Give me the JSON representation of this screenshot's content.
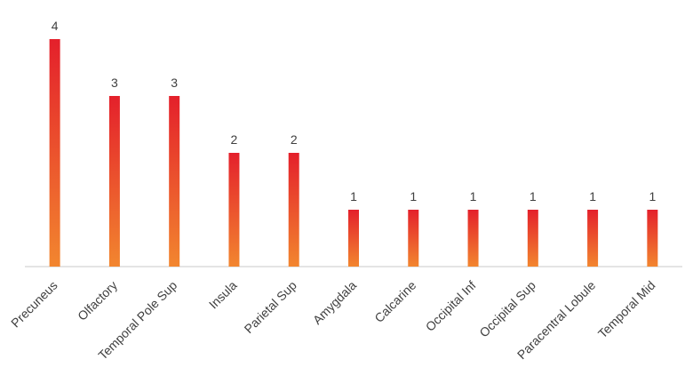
{
  "chart_data": {
    "type": "bar",
    "categories": [
      "Precuneus",
      "Olfactory",
      "Temporal Pole Sup",
      "Insula",
      "Parietal Sup",
      "Amygdala",
      "Calcarine",
      "Occipital Inf",
      "Occipital Sup",
      "Paracentral Lobule",
      "Temporal Mid"
    ],
    "values": [
      4,
      3,
      3,
      2,
      2,
      1,
      1,
      1,
      1,
      1,
      1
    ],
    "gradient": [
      "#e4202b",
      "#f2862f"
    ],
    "axis_color": "#c8c8c8",
    "data_labels": true
  }
}
